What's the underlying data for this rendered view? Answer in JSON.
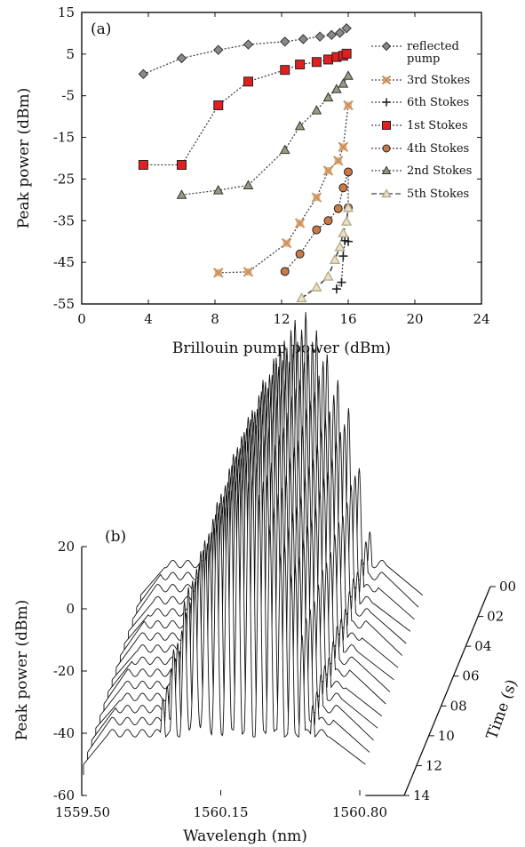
{
  "chart_data": [
    {
      "panel_label": "(a)",
      "type": "scatter",
      "xlabel": "Brillouin pump power (dBm)",
      "ylabel": "Peak power (dBm)",
      "xlim": [
        0,
        24
      ],
      "ylim": [
        -55,
        15
      ],
      "xticks": [
        "0",
        "4",
        "8",
        "12",
        "16",
        "20",
        "24"
      ],
      "yticks": [
        "15",
        "5",
        "-5",
        "-15",
        "-25",
        "-35",
        "-45",
        "-55"
      ],
      "legend_position": "right",
      "series": [
        {
          "name": "reflected pump",
          "marker": "diamond",
          "color": "#8a8a8a",
          "x": [
            3.7,
            6.0,
            8.2,
            10.0,
            12.2,
            13.3,
            14.3,
            15.0,
            15.5,
            15.9
          ],
          "y": [
            0.2,
            4.0,
            6.0,
            7.3,
            8.0,
            8.6,
            9.2,
            9.6,
            10.1,
            11.2
          ]
        },
        {
          "name": "3rd Stokes",
          "marker": "x-square",
          "color": "#c9925c",
          "x": [
            8.2,
            10.0,
            12.3,
            13.1,
            14.1,
            14.8,
            15.4,
            15.7,
            16.0
          ],
          "y": [
            -47.5,
            -47.3,
            -40.4,
            -35.6,
            -29.4,
            -23.0,
            -20.6,
            -17.3,
            -7.3
          ]
        },
        {
          "name": "6th Stokes",
          "marker": "plus",
          "color": "#222222",
          "x": [
            15.3,
            15.6,
            15.7,
            15.8,
            16.0
          ],
          "y": [
            -51.4,
            -49.8,
            -43.5,
            -39.8,
            -40.0
          ]
        },
        {
          "name": "1st Stokes",
          "marker": "square",
          "color": "#e02020",
          "x": [
            3.7,
            6.0,
            8.2,
            10.0,
            12.2,
            13.1,
            14.1,
            14.8,
            15.3,
            15.7,
            15.9
          ],
          "y": [
            -21.6,
            -21.6,
            -7.3,
            -1.6,
            1.2,
            2.5,
            3.1,
            3.7,
            4.3,
            4.6,
            5.1
          ]
        },
        {
          "name": "4th Stokes",
          "marker": "circle",
          "color": "#cc7a45",
          "x": [
            12.2,
            13.1,
            14.1,
            14.8,
            15.4,
            15.7,
            16.0,
            16.0
          ],
          "y": [
            -47.2,
            -43.0,
            -37.2,
            -35.0,
            -32.1,
            -27.1,
            -23.3,
            -31.9
          ]
        },
        {
          "name": "2nd Stokes",
          "marker": "triangle",
          "color": "#9a9a80",
          "x": [
            6.0,
            8.2,
            10.0,
            12.2,
            13.1,
            14.1,
            14.8,
            15.3,
            15.7,
            16.0
          ],
          "y": [
            -28.8,
            -27.7,
            -26.5,
            -18.0,
            -12.3,
            -8.5,
            -5.4,
            -3.4,
            -2.1,
            -0.2
          ]
        },
        {
          "name": "5th Stokes",
          "marker": "triangle-open",
          "color": "#b8ad88",
          "x": [
            13.2,
            14.1,
            14.8,
            15.2,
            15.5,
            15.7,
            15.9,
            16.0
          ],
          "y": [
            -53.6,
            -51.0,
            -48.4,
            -44.4,
            -41.3,
            -38.0,
            -35.2,
            -31.9
          ]
        }
      ]
    },
    {
      "panel_label": "(b)",
      "type": "3d-waterfall",
      "xlabel": "Wavelengh (nm)",
      "ylabel": "Peak power (dBm)",
      "zlabel": "Time (s)",
      "xticks": [
        "1559.50",
        "1560.15",
        "1560.80"
      ],
      "yticks": [
        "20",
        "0",
        "-20",
        "-40",
        "-60"
      ],
      "ylim": [
        -60,
        20
      ],
      "zticks": [
        "00",
        "02",
        "04",
        "06",
        "08",
        "10",
        "12",
        "14"
      ],
      "series_count": 15,
      "floor": -50,
      "peak_centers_nm": [
        1559.83,
        1559.88,
        1559.93,
        1559.98,
        1560.03,
        1560.08,
        1560.13,
        1560.18,
        1560.23,
        1560.28,
        1560.33,
        1560.38,
        1560.43,
        1560.48,
        1560.53,
        1560.58
      ],
      "peak_values": [
        -42,
        -28,
        -14,
        2,
        10,
        18,
        26,
        33,
        38,
        40,
        36,
        28,
        18,
        10,
        -8,
        -30
      ],
      "trough_values": [
        -50,
        -49,
        -45,
        -42,
        -40,
        -40,
        -42,
        -44,
        -45,
        -46,
        -47,
        -48,
        -49,
        -50,
        -50,
        -50
      ]
    }
  ]
}
